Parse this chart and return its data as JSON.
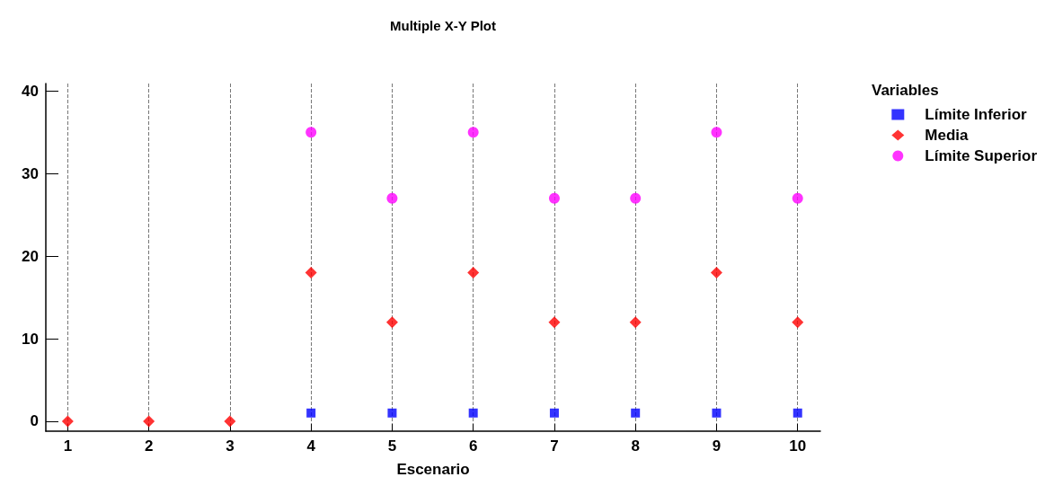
{
  "chart_data": {
    "type": "scatter",
    "title": "Multiple X-Y Plot",
    "xlabel": "Escenario",
    "legend_title": "Variables",
    "x": [
      1,
      2,
      3,
      4,
      5,
      6,
      7,
      8,
      9,
      10
    ],
    "series": [
      {
        "name": "Límite Inferior",
        "color": "#0000ff",
        "marker": "square",
        "values": [
          null,
          null,
          null,
          1,
          1,
          1,
          1,
          1,
          1,
          1
        ]
      },
      {
        "name": "Media",
        "color": "#ff0000",
        "marker": "diamond",
        "values": [
          0,
          0,
          0,
          18,
          12,
          18,
          12,
          12,
          18,
          12
        ]
      },
      {
        "name": "Límite Superior",
        "color": "#ff00ff",
        "marker": "circle",
        "values": [
          null,
          null,
          null,
          35,
          27,
          35,
          27,
          27,
          35,
          27
        ]
      }
    ],
    "xlim": [
      0.73,
      10.28
    ],
    "xticks": [
      1,
      2,
      3,
      4,
      5,
      6,
      7,
      8,
      9,
      10
    ],
    "ylim": [
      -1.2,
      40.9
    ],
    "yticks": [
      0,
      10,
      20,
      30,
      40
    ],
    "grid": "x",
    "legend": "top right"
  }
}
